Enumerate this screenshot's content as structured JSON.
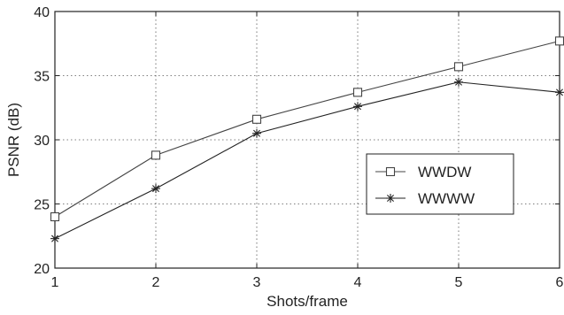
{
  "chart_data": {
    "type": "line",
    "title": "",
    "xlabel": "Shots/frame",
    "ylabel": "PSNR (dB)",
    "x": [
      1,
      2,
      3,
      4,
      5,
      6
    ],
    "xlim": [
      1,
      6
    ],
    "ylim": [
      20,
      40
    ],
    "x_ticks": [
      "1",
      "2",
      "3",
      "4",
      "5",
      "6"
    ],
    "y_ticks": [
      "20",
      "25",
      "30",
      "35",
      "40"
    ],
    "grid": true,
    "legend_position": "right",
    "series": [
      {
        "name": "WWDW",
        "marker": "square",
        "color": "#444444",
        "values": [
          24.0,
          28.8,
          31.6,
          33.7,
          35.7,
          37.7
        ]
      },
      {
        "name": "WWWW",
        "marker": "asterisk",
        "color": "#222222",
        "values": [
          22.3,
          26.2,
          30.5,
          32.6,
          34.5,
          33.7
        ]
      }
    ]
  }
}
